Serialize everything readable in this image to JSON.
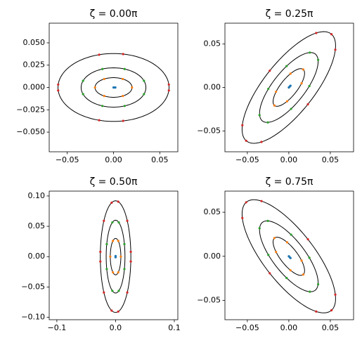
{
  "chart_data": [
    {
      "type": "scatter",
      "title": "ζ = 0.00π",
      "xlim": [
        -0.0695,
        0.0695
      ],
      "ylim": [
        -0.072,
        0.072
      ],
      "xticks": [
        {
          "value": -0.05,
          "label": "−0.05"
        },
        {
          "value": 0,
          "label": "0.00"
        },
        {
          "value": 0.05,
          "label": "0.05"
        }
      ],
      "yticks": [
        {
          "value": -0.05,
          "label": "−0.050"
        },
        {
          "value": -0.025,
          "label": "−0.025"
        },
        {
          "value": 0,
          "label": "0.000"
        },
        {
          "value": 0.025,
          "label": "0.025"
        },
        {
          "value": 0.05,
          "label": "0.050"
        }
      ],
      "ellipses": [
        {
          "rx": 0.06,
          "ry": 0.038,
          "angle": 0
        },
        {
          "rx": 0.035,
          "ry": 0.022,
          "angle": 0
        },
        {
          "rx": 0.02,
          "ry": 0.011,
          "angle": 0
        }
      ],
      "series": [
        {
          "color": "#1f77b4",
          "x": [
            0,
            0.001,
            0.002
          ],
          "y": [
            0,
            0,
            0
          ]
        },
        {
          "color": "#ff7f0e",
          "x": [
            0.02,
            0.01,
            -0.01,
            -0.02,
            -0.01,
            0.01
          ],
          "y": [
            0,
            0.0095,
            0.0095,
            0,
            -0.0095,
            -0.0095
          ]
        },
        {
          "color": "#2ca02c",
          "x": [
            0.0329,
            0.012,
            -0.012,
            -0.0329,
            -0.0329,
            -0.012,
            0.012,
            0.0329
          ],
          "y": [
            0.0075,
            0.0207,
            0.0207,
            0.0075,
            -0.0075,
            -0.0207,
            -0.0207,
            -0.0075
          ]
        },
        {
          "color": "#d62728",
          "x": [
            0.0598,
            0.0104,
            -0.0155,
            -0.0598,
            -0.0598,
            -0.0155,
            0.0104,
            0.0598
          ],
          "y": [
            0.0033,
            0.0374,
            0.0367,
            0.0033,
            -0.0033,
            -0.0367,
            -0.0374,
            -0.0033
          ]
        }
      ]
    },
    {
      "type": "scatter",
      "title": "ζ = 0.25π",
      "xlim": [
        -0.077,
        0.078
      ],
      "ylim": [
        -0.074,
        0.074
      ],
      "xticks": [
        {
          "value": -0.05,
          "label": "−0.05"
        },
        {
          "value": 0,
          "label": "0.00"
        },
        {
          "value": 0.05,
          "label": "0.05"
        }
      ],
      "yticks": [
        {
          "value": -0.05,
          "label": "−0.05"
        },
        {
          "value": 0,
          "label": "0.00"
        },
        {
          "value": 0.05,
          "label": "0.05"
        }
      ],
      "ellipses": [
        {
          "rx": 0.08,
          "ry": 0.03,
          "angle": 50
        },
        {
          "rx": 0.05,
          "ry": 0.019,
          "angle": 50
        },
        {
          "rx": 0.027,
          "ry": 0.01,
          "angle": 50
        }
      ],
      "series": [
        {
          "color": "#1f77b4",
          "x": [
            0,
            0.001,
            0.002
          ],
          "y": [
            0,
            0.001,
            0.002
          ]
        },
        {
          "color": "#ff7f0e",
          "x": [
            0.0174,
            0.002,
            -0.0154,
            -0.0174,
            -0.002,
            0.0154
          ],
          "y": [
            0.0207,
            0.0159,
            -0.0049,
            -0.0207,
            -0.0159,
            0.0049
          ]
        },
        {
          "color": "#2ca02c",
          "x": [
            0.0253,
            -0.0027,
            -0.0247,
            -0.0353,
            -0.0253,
            0.0027,
            0.0247,
            0.0353
          ],
          "y": [
            0.0402,
            0.0246,
            -0.0016,
            -0.0318,
            -0.0402,
            -0.0246,
            0.0016,
            0.0318
          ]
        },
        {
          "color": "#d62728",
          "x": [
            0.0514,
            0.033,
            -0.023,
            -0.056,
            -0.0514,
            -0.033,
            0.023,
            0.056
          ],
          "y": [
            0.0613,
            0.0627,
            0.0193,
            -0.0435,
            -0.0613,
            -0.0627,
            -0.0193,
            0.0435
          ]
        }
      ]
    },
    {
      "type": "scatter",
      "title": "ζ = 0.50π",
      "xlim": [
        -0.113,
        0.106
      ],
      "ylim": [
        -0.104,
        0.108
      ],
      "xticks": [
        {
          "value": -0.1,
          "label": "−0.1"
        },
        {
          "value": 0,
          "label": "0.0"
        },
        {
          "value": 0.1,
          "label": "0.1"
        }
      ],
      "yticks": [
        {
          "value": -0.1,
          "label": "−0.10"
        },
        {
          "value": -0.05,
          "label": "−0.05"
        },
        {
          "value": 0,
          "label": "0.00"
        },
        {
          "value": 0.05,
          "label": "0.05"
        },
        {
          "value": 0.1,
          "label": "0.10"
        }
      ],
      "ellipses": [
        {
          "rx": 0.026,
          "ry": 0.092,
          "angle": 0
        },
        {
          "rx": 0.016,
          "ry": 0.06,
          "angle": 0
        },
        {
          "rx": 0.009,
          "ry": 0.03,
          "angle": 0
        }
      ],
      "series": [
        {
          "color": "#1f77b4",
          "x": [
            0,
            0,
            0
          ],
          "y": [
            0,
            -0.001,
            0.001
          ]
        },
        {
          "color": "#ff7f0e",
          "x": [
            0.009,
            0.0045,
            -0.0045,
            -0.009,
            -0.0045,
            0.0045
          ],
          "y": [
            0,
            0.026,
            0.026,
            0,
            -0.026,
            -0.026
          ]
        },
        {
          "color": "#2ca02c",
          "x": [
            0.015,
            0.0055,
            -0.0055,
            -0.015,
            -0.015,
            -0.0055,
            0.0055,
            0.015
          ],
          "y": [
            0.0205,
            0.0564,
            0.0564,
            0.0205,
            -0.0205,
            -0.0564,
            -0.0564,
            -0.0205
          ]
        },
        {
          "color": "#d62728",
          "x": [
            0.0259,
            0.0199,
            0.0045,
            -0.0067,
            -0.0199,
            -0.0259,
            -0.0259,
            -0.0199,
            -0.0067,
            0.0045,
            0.0199,
            0.0259
          ],
          "y": [
            0.008,
            0.0591,
            0.0906,
            0.0889,
            0.0591,
            0.008,
            -0.008,
            -0.0591,
            -0.0889,
            -0.0906,
            -0.0591,
            -0.008
          ]
        }
      ]
    },
    {
      "type": "scatter",
      "title": "ζ = 0.75π",
      "xlim": [
        -0.077,
        0.078
      ],
      "ylim": [
        -0.072,
        0.074
      ],
      "xticks": [
        {
          "value": -0.05,
          "label": "−0.05"
        },
        {
          "value": 0,
          "label": "0.00"
        },
        {
          "value": 0.05,
          "label": "0.05"
        }
      ],
      "yticks": [
        {
          "value": -0.05,
          "label": "−0.05"
        },
        {
          "value": 0,
          "label": "0.00"
        },
        {
          "value": 0.05,
          "label": "0.05"
        }
      ],
      "ellipses": [
        {
          "rx": 0.08,
          "ry": 0.03,
          "angle": -50
        },
        {
          "rx": 0.05,
          "ry": 0.019,
          "angle": -50
        },
        {
          "rx": 0.027,
          "ry": 0.01,
          "angle": -50
        }
      ],
      "series": [
        {
          "color": "#1f77b4",
          "x": [
            0,
            0.001,
            0.002
          ],
          "y": [
            0,
            -0.001,
            -0.002
          ]
        },
        {
          "color": "#ff7f0e",
          "x": [
            -0.0174,
            -0.002,
            0.0154,
            0.0174,
            0.002,
            -0.0154
          ],
          "y": [
            0.0207,
            0.0159,
            -0.0049,
            -0.0207,
            -0.0159,
            0.0049
          ]
        },
        {
          "color": "#2ca02c",
          "x": [
            -0.0253,
            0.0027,
            0.0247,
            0.0353,
            0.0253,
            -0.0027,
            -0.0247,
            -0.0353
          ],
          "y": [
            0.0402,
            0.0246,
            -0.0016,
            -0.0318,
            -0.0402,
            -0.0246,
            0.0016,
            0.0318
          ]
        },
        {
          "color": "#d62728",
          "x": [
            -0.0514,
            -0.033,
            0.023,
            0.056,
            0.0514,
            0.033,
            -0.023,
            -0.056
          ],
          "y": [
            0.0613,
            0.0627,
            0.0193,
            -0.0435,
            -0.0613,
            -0.0627,
            -0.0193,
            0.0435
          ]
        }
      ]
    }
  ]
}
